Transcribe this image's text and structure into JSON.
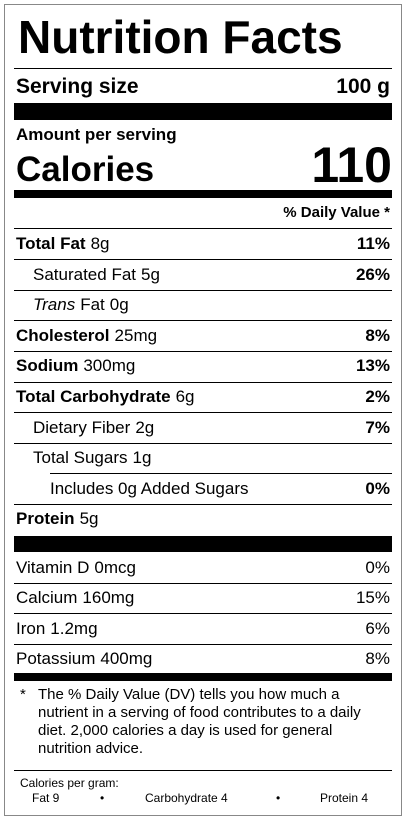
{
  "title": "Nutrition Facts",
  "serving": {
    "label": "Serving size",
    "value": "100 g"
  },
  "amount_per_serving": "Amount per serving",
  "calories": {
    "label": "Calories",
    "value": "110"
  },
  "daily_value_header": "% Daily Value *",
  "nutrients": [
    {
      "name": "Total Fat",
      "amount": "8g",
      "dv": "11%",
      "indent": 0
    },
    {
      "name": "Saturated Fat",
      "amount": "5g",
      "dv": "26%",
      "indent": 1
    },
    {
      "name_italic": "Trans",
      "name": "Fat",
      "amount": "0g",
      "indent": 1
    },
    {
      "name": "Cholesterol",
      "amount": "25mg",
      "dv": "8%",
      "indent": 0
    },
    {
      "name": "Sodium",
      "amount": "300mg",
      "dv": "13%",
      "indent": 0
    },
    {
      "name": "Total Carbohydrate",
      "amount": "6g",
      "dv": "2%",
      "indent": 0
    },
    {
      "name": "Dietary Fiber",
      "amount": "2g",
      "dv": "7%",
      "indent": 1
    },
    {
      "name": "Total Sugars",
      "amount": "1g",
      "indent": 1
    },
    {
      "name": "Includes 0g Added Sugars",
      "dv": "0%",
      "indent": 2
    },
    {
      "name": "Protein",
      "amount": "5g",
      "indent": 0
    }
  ],
  "vitamins": [
    {
      "name": "Vitamin D",
      "amount": "0mcg",
      "dv": "0%"
    },
    {
      "name": "Calcium",
      "amount": "160mg",
      "dv": "15%"
    },
    {
      "name": "Iron",
      "amount": "1.2mg",
      "dv": "6%"
    },
    {
      "name": "Potassium",
      "amount": "400mg",
      "dv": "8%"
    }
  ],
  "footnote": {
    "marker": "*",
    "text": "The % Daily Value (DV) tells you how much a nutrient in a serving of food contributes to a daily diet. 2,000 calories a day is used for general nutrition advice."
  },
  "calories_per_gram": {
    "label": "Calories per gram:",
    "items": [
      "Fat 9",
      "Carbohydrate 4",
      "Protein 4"
    ]
  }
}
